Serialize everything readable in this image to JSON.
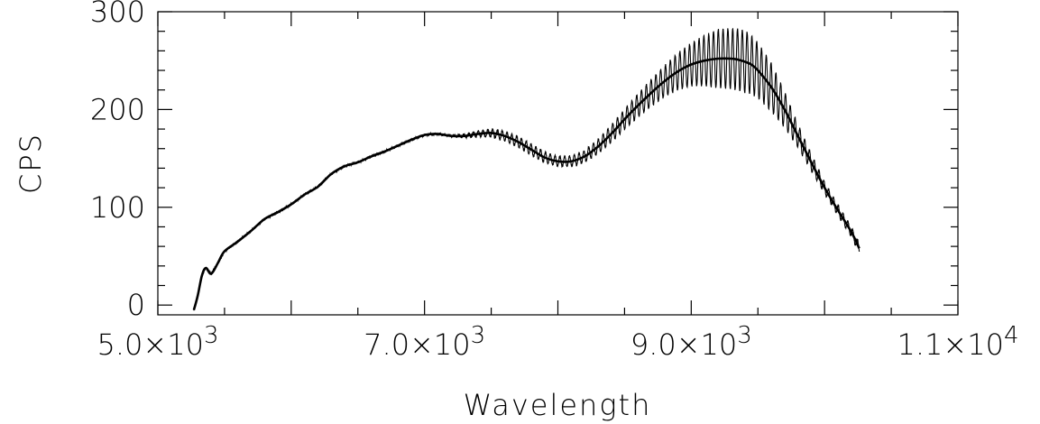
{
  "chart_data": {
    "type": "line",
    "title": "",
    "xlabel": "Wavelength",
    "ylabel": "CPS",
    "xlim": [
      5000,
      11000
    ],
    "ylim": [
      -10,
      300
    ],
    "x_ticks": [
      {
        "value": 5000,
        "mantissa": "5.0",
        "times": "×10",
        "exp": "3"
      },
      {
        "value": 7000,
        "mantissa": "7.0",
        "times": "×10",
        "exp": "3"
      },
      {
        "value": 9000,
        "mantissa": "9.0",
        "times": "×10",
        "exp": "3"
      },
      {
        "value": 11000,
        "mantissa": "1.1",
        "times": "×10",
        "exp": "4"
      }
    ],
    "x_minor_step": 500,
    "y_ticks": [
      {
        "value": 0,
        "label": "0"
      },
      {
        "value": 100,
        "label": "100"
      },
      {
        "value": 200,
        "label": "200"
      },
      {
        "value": 300,
        "label": "300"
      }
    ],
    "y_minor_step": 20,
    "grid": false,
    "series": [
      {
        "kind": "smooth-fit",
        "x": [
          5270,
          5300,
          5330,
          5360,
          5400,
          5450,
          5500,
          5600,
          5700,
          5800,
          5900,
          6000,
          6100,
          6200,
          6300,
          6400,
          6500,
          6600,
          6700,
          6800,
          6900,
          7000,
          7100,
          7200,
          7300,
          7400,
          7500,
          7600,
          7700,
          7800,
          7900,
          8000,
          8100,
          8200,
          8300,
          8400,
          8500,
          8600,
          8700,
          8800,
          8900,
          9000,
          9100,
          9200,
          9300,
          9350,
          9400,
          9450,
          9500,
          9600,
          9700,
          9800,
          9900,
          10000,
          10100,
          10200,
          10260
        ],
        "y": [
          -5,
          10,
          30,
          38,
          32,
          43,
          55,
          65,
          76,
          88,
          95,
          103,
          113,
          121,
          134,
          142,
          146,
          152,
          157,
          163,
          169,
          174,
          175,
          173,
          173,
          175,
          176,
          173,
          167,
          159,
          151,
          147,
          147,
          152,
          162,
          175,
          190,
          204,
          217,
          229,
          239,
          246,
          250,
          252,
          252,
          251,
          249,
          246,
          240,
          223,
          200,
          173,
          146,
          120,
          97,
          75,
          58
        ]
      },
      {
        "kind": "raw",
        "base_x": [
          5270,
          5300,
          5330,
          5360,
          5400,
          5450,
          5500,
          5600,
          5700,
          5800,
          5900,
          6000,
          6100,
          6200,
          6300,
          6400,
          6500,
          6600,
          6700,
          6800,
          6900,
          7000,
          7100,
          7200,
          7300,
          7400,
          7500,
          7600,
          7700,
          7800,
          7900,
          8000,
          8100,
          8200,
          8300,
          8400,
          8500,
          8600,
          8700,
          8800,
          8900,
          9000,
          9100,
          9200,
          9300,
          9350,
          9400,
          9450,
          9500,
          9600,
          9700,
          9800,
          9900,
          10000,
          10100,
          10200,
          10260
        ],
        "base_y": [
          -5,
          10,
          30,
          38,
          32,
          43,
          55,
          65,
          76,
          88,
          95,
          103,
          113,
          121,
          134,
          142,
          146,
          152,
          157,
          163,
          169,
          174,
          175,
          173,
          173,
          175,
          176,
          173,
          167,
          159,
          151,
          147,
          147,
          152,
          162,
          175,
          190,
          204,
          217,
          229,
          239,
          246,
          250,
          252,
          252,
          251,
          249,
          246,
          240,
          223,
          200,
          173,
          146,
          120,
          97,
          75,
          58
        ],
        "fringe_x": [
          5000,
          7200,
          7400,
          7600,
          7800,
          8000,
          8200,
          8400,
          8600,
          8800,
          9000,
          9200,
          9400,
          9600,
          9800,
          10000,
          10300
        ],
        "fringe_amplitude": [
          0.5,
          0.8,
          3,
          5,
          6,
          5,
          6,
          9,
          12,
          16,
          22,
          30,
          32,
          25,
          12,
          6,
          5
        ],
        "fringe_period": 36
      }
    ]
  }
}
